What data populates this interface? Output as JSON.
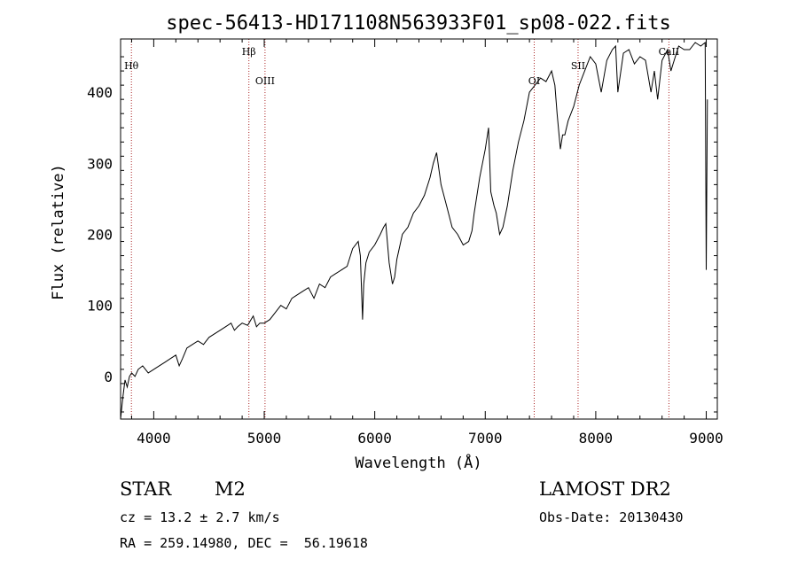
{
  "chart_data": {
    "type": "line",
    "title": "spec-56413-HD171108N563933F01_sp08-022.fits",
    "xlabel": "Wavelength (Å)",
    "ylabel": "Flux (relative)",
    "xlim": [
      3700,
      9100
    ],
    "ylim": [
      -60,
      475
    ],
    "xticks": [
      4000,
      5000,
      6000,
      7000,
      8000,
      9000
    ],
    "yticks": [
      0,
      100,
      200,
      300,
      400
    ],
    "grid": false,
    "series": [
      {
        "line_color": "#000000",
        "x": [
          3700,
          3720,
          3740,
          3760,
          3780,
          3800,
          3830,
          3860,
          3900,
          3950,
          4000,
          4050,
          4100,
          4150,
          4200,
          4230,
          4260,
          4300,
          4350,
          4400,
          4450,
          4500,
          4550,
          4600,
          4650,
          4700,
          4730,
          4760,
          4800,
          4850,
          4880,
          4900,
          4930,
          4960,
          5000,
          5050,
          5100,
          5150,
          5200,
          5250,
          5300,
          5350,
          5400,
          5450,
          5500,
          5550,
          5600,
          5650,
          5700,
          5750,
          5800,
          5850,
          5870,
          5890,
          5900,
          5920,
          5950,
          6000,
          6050,
          6080,
          6100,
          6130,
          6160,
          6180,
          6200,
          6250,
          6300,
          6350,
          6400,
          6450,
          6500,
          6530,
          6560,
          6600,
          6650,
          6700,
          6750,
          6800,
          6850,
          6880,
          6900,
          6950,
          7000,
          7030,
          7050,
          7080,
          7100,
          7130,
          7160,
          7200,
          7250,
          7300,
          7350,
          7400,
          7450,
          7500,
          7550,
          7600,
          7630,
          7650,
          7680,
          7700,
          7720,
          7750,
          7800,
          7850,
          7900,
          7950,
          8000,
          8050,
          8100,
          8150,
          8180,
          8200,
          8250,
          8300,
          8350,
          8400,
          8450,
          8500,
          8530,
          8560,
          8600,
          8650,
          8680,
          8700,
          8750,
          8800,
          8850,
          8900,
          8950,
          8990,
          9000,
          9010
        ],
        "values": [
          -60,
          -30,
          -5,
          -15,
          0,
          5,
          0,
          10,
          15,
          5,
          10,
          15,
          20,
          25,
          30,
          15,
          25,
          40,
          45,
          50,
          45,
          55,
          60,
          65,
          70,
          75,
          65,
          70,
          75,
          72,
          80,
          85,
          70,
          75,
          75,
          80,
          90,
          100,
          95,
          110,
          115,
          120,
          125,
          110,
          130,
          125,
          140,
          145,
          150,
          155,
          180,
          190,
          170,
          80,
          130,
          160,
          175,
          185,
          200,
          210,
          215,
          160,
          130,
          140,
          165,
          200,
          210,
          230,
          240,
          255,
          280,
          300,
          315,
          270,
          240,
          210,
          200,
          185,
          190,
          205,
          230,
          280,
          320,
          350,
          260,
          240,
          230,
          200,
          210,
          240,
          290,
          330,
          360,
          400,
          410,
          420,
          415,
          430,
          410,
          370,
          320,
          340,
          340,
          360,
          380,
          410,
          430,
          450,
          440,
          400,
          445,
          460,
          465,
          400,
          455,
          460,
          440,
          450,
          445,
          400,
          430,
          390,
          445,
          460,
          430,
          440,
          465,
          460,
          460,
          470,
          465,
          470,
          150,
          390
        ]
      }
    ],
    "annotations": [
      {
        "label": "Hθ",
        "x": 3798,
        "row": "upper"
      },
      {
        "label": "Hβ",
        "x": 4861,
        "row": "top"
      },
      {
        "label": "OIII",
        "x": 5007,
        "row": "lower"
      },
      {
        "label": "OI",
        "x": 7443,
        "row": "lower"
      },
      {
        "label": "SII",
        "x": 7840,
        "row": "upper"
      },
      {
        "label": "CaII",
        "x": 8662,
        "row": "top"
      }
    ],
    "line_marker_color": "#aa2222"
  },
  "info": {
    "object_class": "STAR",
    "subclass": "M2",
    "survey": "LAMOST DR2",
    "redshift": "cz = 13.2 ± 2.7 km/s",
    "obs_date": "Obs-Date: 20130430",
    "coords": "RA = 259.14980, DEC =  56.19618"
  }
}
